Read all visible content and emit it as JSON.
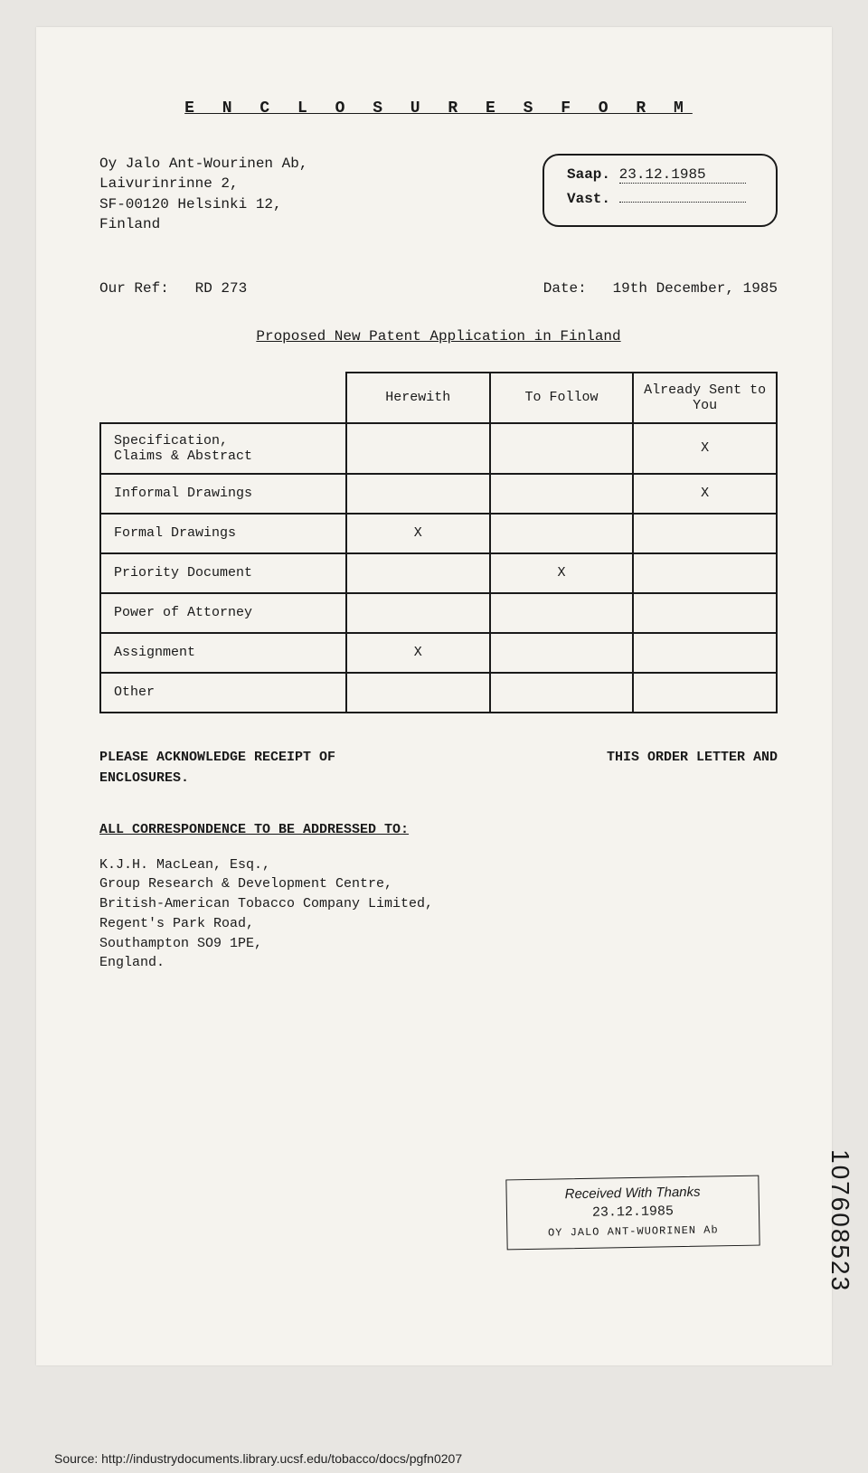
{
  "title": "E N C L O S U R E S   F O R M",
  "address": {
    "line1": "Oy Jalo Ant-Wourinen Ab,",
    "line2": "Laivurinrinne 2,",
    "line3": "SF-00120 Helsinki 12,",
    "line4": "Finland"
  },
  "stamp1": {
    "label1": "Saap.",
    "value1": "23.12.1985",
    "label2": "Vast.",
    "value2": ""
  },
  "refLabel": "Our Ref:",
  "refValue": "RD 273",
  "dateLabel": "Date:",
  "dateValue": "19th December, 1985",
  "subtitle": "Proposed New Patent Application in Finland",
  "table": {
    "headers": [
      "Herewith",
      "To Follow",
      "Already Sent to You"
    ],
    "rows": [
      {
        "label": "Specification,\nClaims & Abstract",
        "marks": [
          "",
          "",
          "X"
        ]
      },
      {
        "label": "Informal Drawings",
        "marks": [
          "",
          "",
          "X"
        ]
      },
      {
        "label": "Formal Drawings",
        "marks": [
          "X",
          "",
          ""
        ]
      },
      {
        "label": "Priority Document",
        "marks": [
          "",
          "X",
          ""
        ]
      },
      {
        "label": "Power of Attorney",
        "marks": [
          "",
          "",
          ""
        ]
      },
      {
        "label": "Assignment",
        "marks": [
          "X",
          "",
          ""
        ]
      },
      {
        "label": "Other",
        "marks": [
          "",
          "",
          ""
        ]
      }
    ]
  },
  "ackLeft": "PLEASE ACKNOWLEDGE RECEIPT OF",
  "ackRight": "THIS ORDER LETTER AND",
  "ackEnd": "ENCLOSURES.",
  "correspondence": {
    "label": "ALL CORRESPONDENCE TO BE ADDRESSED TO:",
    "line1": "K.J.H. MacLean, Esq.,",
    "line2": "Group Research & Development Centre,",
    "line3": "British-American Tobacco Company Limited,",
    "line4": "Regent's Park Road,",
    "line5": "Southampton SO9 1PE,",
    "line6": "England."
  },
  "receivedStamp": {
    "line1": "Received With Thanks",
    "line2": "23.12.1985",
    "line3": "OY JALO ANT-WUORINEN Ab"
  },
  "verticalNumber": "107608523",
  "sourceUrl": "Source: http://industrydocuments.library.ucsf.edu/tobacco/docs/pgfn0207"
}
